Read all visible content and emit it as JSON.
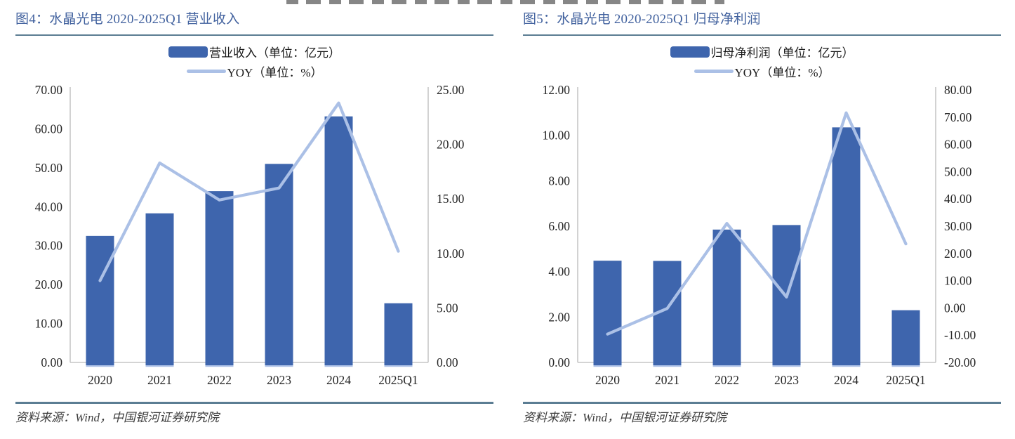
{
  "colors": {
    "bar": "#3e65ad",
    "line": "#abc0e6",
    "title": "#41619e",
    "rule": "#5b7d93",
    "axis": "#c6c6c6",
    "tick_text": "#262626",
    "source_text": "#3d3d3d"
  },
  "charts": [
    {
      "figure_title": "图4：水晶光电 2020-2025Q1 营业收入",
      "legend_bar": "营业收入（单位：亿元）",
      "legend_line": "YOY（单位：%）",
      "source": "资料来源：Wind，中国银河证券研究院",
      "chart_data": {
        "type": "bar+line",
        "categories": [
          "2020",
          "2021",
          "2022",
          "2023",
          "2024",
          "2025Q1"
        ],
        "series": [
          {
            "name": "营业收入（单位：亿元）",
            "type": "bar",
            "axis": "left",
            "values": [
              32.5,
              38.3,
              44.0,
              51.0,
              63.2,
              15.2
            ]
          },
          {
            "name": "YOY（单位：%）",
            "type": "line",
            "axis": "right",
            "values": [
              7.5,
              18.3,
              14.9,
              16.0,
              23.8,
              10.2
            ]
          }
        ],
        "left_axis": {
          "min": 0,
          "max": 70,
          "step": 10
        },
        "right_axis": {
          "min": 0,
          "max": 25,
          "step": 5
        },
        "grid": false,
        "legend_position": "top-center"
      }
    },
    {
      "figure_title": "图5：水晶光电 2020-2025Q1 归母净利润",
      "legend_bar": "归母净利润（单位：亿元）",
      "legend_line": "YOY（单位：%）",
      "source": "资料来源：Wind，中国银河证券研究院",
      "chart_data": {
        "type": "bar+line",
        "categories": [
          "2020",
          "2021",
          "2022",
          "2023",
          "2024",
          "2025Q1"
        ],
        "series": [
          {
            "name": "归母净利润（单位：亿元）",
            "type": "bar",
            "axis": "left",
            "values": [
              4.48,
              4.47,
              5.85,
              6.05,
              10.35,
              2.3
            ]
          },
          {
            "name": "YOY（单位：%）",
            "type": "line",
            "axis": "right",
            "values": [
              -9.6,
              -0.2,
              31.0,
              4.0,
              71.6,
              23.5
            ]
          }
        ],
        "left_axis": {
          "min": 0,
          "max": 12,
          "step": 2
        },
        "right_axis": {
          "min": -20,
          "max": 80,
          "step": 10
        },
        "grid": false,
        "legend_position": "top-center"
      }
    }
  ]
}
